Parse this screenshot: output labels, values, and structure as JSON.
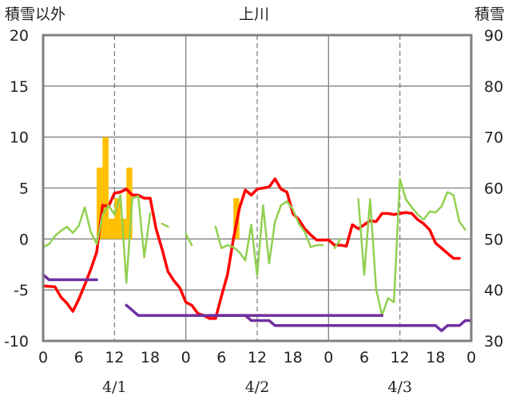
{
  "chart_data": {
    "type": "combo",
    "title": "上川",
    "left_axis_label": "積雪以外",
    "right_axis_label": "積雪",
    "left_ylim": [
      -10,
      20
    ],
    "right_ylim": [
      30,
      90
    ],
    "left_yticks": [
      "20",
      "15",
      "10",
      "5",
      "0",
      "-5",
      "-10"
    ],
    "right_yticks": [
      "90",
      "80",
      "70",
      "60",
      "50",
      "40",
      "30"
    ],
    "x_hours_total": 72,
    "x_tick_labels": [
      "0",
      "6",
      "12",
      "18",
      "0",
      "6",
      "12",
      "18",
      "0",
      "6",
      "12",
      "18",
      "0"
    ],
    "date_labels": [
      "4/1",
      "4/2",
      "4/3"
    ],
    "colors": {
      "temperature": "#ff0000",
      "wind": "#92d050",
      "precipitation": "#ffc000",
      "snow_depth": "#7030a0",
      "frame": "#808080",
      "grid": "#808080"
    },
    "series": [
      {
        "name": "precipitation",
        "type": "bar",
        "axis": "left",
        "x": [
          9.5,
          10.5,
          11.5,
          12.5,
          13.5,
          14.5
        ],
        "values": [
          7,
          10,
          2,
          4,
          2,
          7
        ]
      },
      {
        "name": "precipitation-day2",
        "type": "bar",
        "axis": "left",
        "x": [
          32.5
        ],
        "values": [
          4
        ]
      },
      {
        "name": "temperature",
        "type": "line",
        "axis": "left",
        "segments": [
          [
            [
              0,
              -4.6
            ],
            [
              2,
              -4.7
            ],
            [
              3,
              -5.7
            ],
            [
              4,
              -6.3
            ],
            [
              5,
              -7.1
            ],
            [
              6,
              -5.9
            ],
            [
              7,
              -4.5
            ],
            [
              8,
              -3
            ],
            [
              9,
              -1.3
            ],
            [
              10,
              3.3
            ],
            [
              11,
              3.2
            ],
            [
              12,
              4.5
            ],
            [
              13,
              4.6
            ],
            [
              14,
              4.9
            ],
            [
              15,
              4.3
            ],
            [
              16,
              4.3
            ],
            [
              17,
              4
            ],
            [
              18,
              4
            ],
            [
              19,
              1
            ],
            [
              20,
              -1
            ],
            [
              21,
              -3.2
            ],
            [
              22,
              -4.1
            ],
            [
              23,
              -4.8
            ],
            [
              24,
              -6.2
            ],
            [
              25,
              -6.5
            ],
            [
              26,
              -7.3
            ],
            [
              27,
              -7.5
            ],
            [
              28,
              -7.8
            ],
            [
              29,
              -7.8
            ],
            [
              30,
              -5.6
            ],
            [
              31,
              -3.5
            ],
            [
              32,
              0
            ],
            [
              33,
              3
            ],
            [
              34,
              4.8
            ],
            [
              35,
              4.3
            ],
            [
              36,
              4.9
            ],
            [
              37,
              5
            ],
            [
              38,
              5.1
            ],
            [
              39,
              5.9
            ],
            [
              40,
              4.9
            ],
            [
              41,
              4.6
            ],
            [
              42,
              2.5
            ],
            [
              43,
              1.9
            ],
            [
              44,
              1
            ],
            [
              45,
              0.4
            ],
            [
              46,
              -0.1
            ],
            [
              47,
              -0.1
            ],
            [
              48,
              -0.1
            ],
            [
              49,
              -0.6
            ],
            [
              50,
              -0.6
            ],
            [
              51,
              -0.7
            ],
            [
              52,
              1.4
            ],
            [
              53,
              1
            ],
            [
              54,
              1.4
            ],
            [
              55,
              1.8
            ],
            [
              56,
              1.7
            ],
            [
              57,
              2.5
            ],
            [
              58,
              2.5
            ],
            [
              59,
              2.4
            ],
            [
              60,
              2.5
            ],
            [
              61,
              2.6
            ],
            [
              62,
              2.5
            ],
            [
              63,
              1.9
            ],
            [
              64,
              1.5
            ],
            [
              65,
              0.9
            ],
            [
              66,
              -0.4
            ],
            [
              67,
              -0.9
            ],
            [
              68,
              -1.4
            ],
            [
              69,
              -1.9
            ],
            [
              70,
              -1.9
            ]
          ]
        ]
      },
      {
        "name": "wind",
        "type": "line",
        "axis": "left",
        "segments": [
          [
            [
              0,
              -0.8
            ],
            [
              1,
              -0.5
            ],
            [
              2,
              0.3
            ],
            [
              3,
              0.8
            ],
            [
              4,
              1.2
            ],
            [
              5,
              0.6
            ],
            [
              6,
              1.3
            ],
            [
              7,
              3.1
            ],
            [
              8,
              0.7
            ],
            [
              9,
              -0.5
            ],
            [
              10,
              2.4
            ],
            [
              11,
              3.3
            ],
            [
              12,
              2.4
            ],
            [
              13,
              4.3
            ],
            [
              14,
              -4.3
            ],
            [
              15,
              4
            ],
            [
              16,
              4.2
            ],
            [
              17,
              -1.8
            ],
            [
              18,
              2.5
            ]
          ],
          [
            [
              20,
              1.5
            ],
            [
              21,
              1.2
            ]
          ],
          [
            [
              24,
              0.5
            ],
            [
              25,
              -0.6
            ]
          ],
          [
            [
              29,
              1.2
            ],
            [
              30,
              -0.9
            ],
            [
              31,
              -0.6
            ],
            [
              32,
              -0.8
            ],
            [
              33,
              -1.3
            ],
            [
              34,
              -2.1
            ],
            [
              35,
              1.4
            ],
            [
              36,
              -3.6
            ],
            [
              37,
              3.3
            ],
            [
              38,
              -2.4
            ],
            [
              39,
              1.7
            ],
            [
              40,
              3.3
            ],
            [
              41,
              3.7
            ],
            [
              42,
              2.9
            ],
            [
              43,
              1.5
            ],
            [
              44,
              0.7
            ],
            [
              45,
              -0.8
            ],
            [
              46,
              -0.6
            ],
            [
              47,
              -0.6
            ]
          ],
          [
            [
              49,
              -0.9
            ],
            [
              50,
              0
            ]
          ],
          [
            [
              53,
              3.9
            ],
            [
              54,
              -3.5
            ],
            [
              55,
              3.9
            ],
            [
              56,
              -4.9
            ],
            [
              57,
              -7.5
            ],
            [
              58,
              -5.8
            ],
            [
              59,
              -6.2
            ],
            [
              60,
              5.9
            ],
            [
              61,
              3.9
            ],
            [
              62,
              3.1
            ],
            [
              63,
              2.4
            ],
            [
              64,
              1.9
            ],
            [
              65,
              2.7
            ],
            [
              66,
              2.6
            ],
            [
              67,
              3.2
            ],
            [
              68,
              4.6
            ],
            [
              69,
              4.3
            ],
            [
              70,
              1.7
            ],
            [
              71,
              0.9
            ]
          ]
        ]
      },
      {
        "name": "snow_depth",
        "type": "line",
        "axis": "right",
        "segments": [
          [
            [
              0,
              43
            ],
            [
              1,
              42
            ],
            [
              9,
              42
            ]
          ],
          [
            [
              14,
              37
            ],
            [
              15,
              36
            ],
            [
              16,
              35
            ],
            [
              56,
              35
            ],
            [
              57,
              35
            ]
          ],
          [
            [
              28,
              35
            ],
            [
              34,
              35
            ],
            [
              35,
              34
            ],
            [
              38,
              34
            ],
            [
              39,
              33
            ],
            [
              66,
              33
            ],
            [
              67,
              32
            ],
            [
              68,
              33
            ],
            [
              70,
              33
            ],
            [
              71,
              34
            ],
            [
              72,
              34
            ]
          ]
        ]
      }
    ]
  }
}
